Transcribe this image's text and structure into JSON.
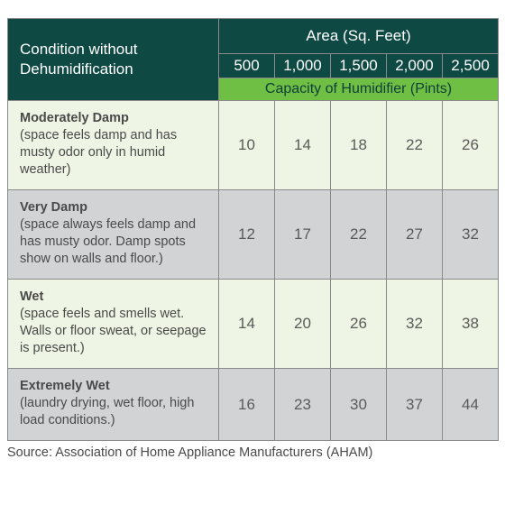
{
  "header": {
    "condition_label": "Condition without Dehumidification",
    "area_label": "Area (Sq. Feet)",
    "sizes": [
      "500",
      "1,000",
      "1,500",
      "2,000",
      "2,500"
    ],
    "capacity_label": "Capacity of Humidifier (Pints)"
  },
  "rows": [
    {
      "name": "Moderately Damp",
      "desc": "(space feels damp and has musty odor only in humid weather)",
      "values": [
        "10",
        "14",
        "18",
        "22",
        "26"
      ]
    },
    {
      "name": "Very Damp",
      "desc": "(space always feels damp and has musty odor. Damp spots show on walls and floor.)",
      "values": [
        "12",
        "17",
        "22",
        "27",
        "32"
      ]
    },
    {
      "name": "Wet",
      "desc": "(space feels and smells wet. Walls or floor sweat, or seepage is present.)",
      "values": [
        "14",
        "20",
        "26",
        "32",
        "38"
      ]
    },
    {
      "name": "Extremely Wet",
      "desc": "(laundry drying, wet floor, high load conditions.)",
      "values": [
        "16",
        "23",
        "30",
        "37",
        "44"
      ]
    }
  ],
  "source": "Source: Association of Home Appliance Manufacturers (AHAM)",
  "colors": {
    "header_bg": "#0e4a43",
    "capacity_bg": "#6fbf44",
    "row_light": "#eef5e4",
    "row_gray": "#d2d3d5"
  }
}
